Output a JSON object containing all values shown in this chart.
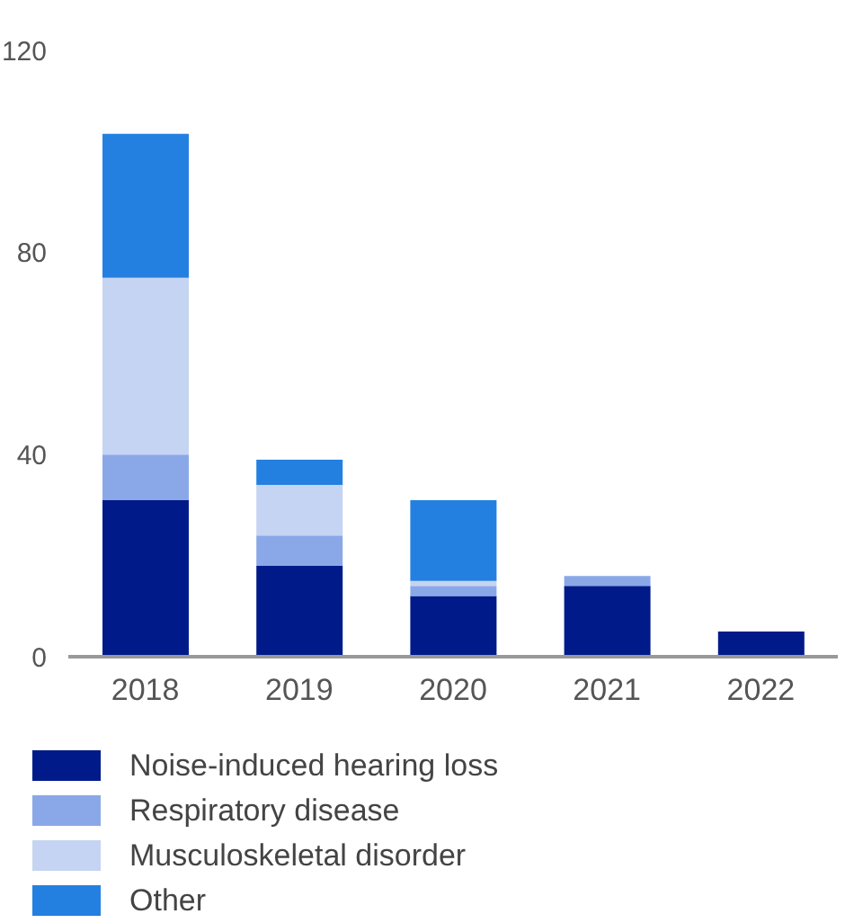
{
  "chart_data": {
    "type": "bar",
    "stacked": true,
    "categories": [
      "2018",
      "2019",
      "2020",
      "2021",
      "2022"
    ],
    "series": [
      {
        "name": "Noise-induced hearing loss",
        "color": "#001a8a",
        "values": [
          31,
          18,
          12,
          14,
          5
        ]
      },
      {
        "name": "Respiratory disease",
        "color": "#8aa8e8",
        "values": [
          9,
          6,
          2,
          2,
          null
        ]
      },
      {
        "name": "Musculoskeletal disorder",
        "color": "#c5d4f2",
        "values": [
          35,
          10,
          1,
          null,
          null
        ]
      },
      {
        "name": "Other",
        "color": "#2480e0",
        "values": [
          28.5,
          5,
          16,
          null,
          null
        ]
      }
    ],
    "ylim": [
      0,
      120
    ],
    "yticks": [
      0,
      40,
      80,
      120
    ],
    "grid": false,
    "legend": "bottom"
  }
}
